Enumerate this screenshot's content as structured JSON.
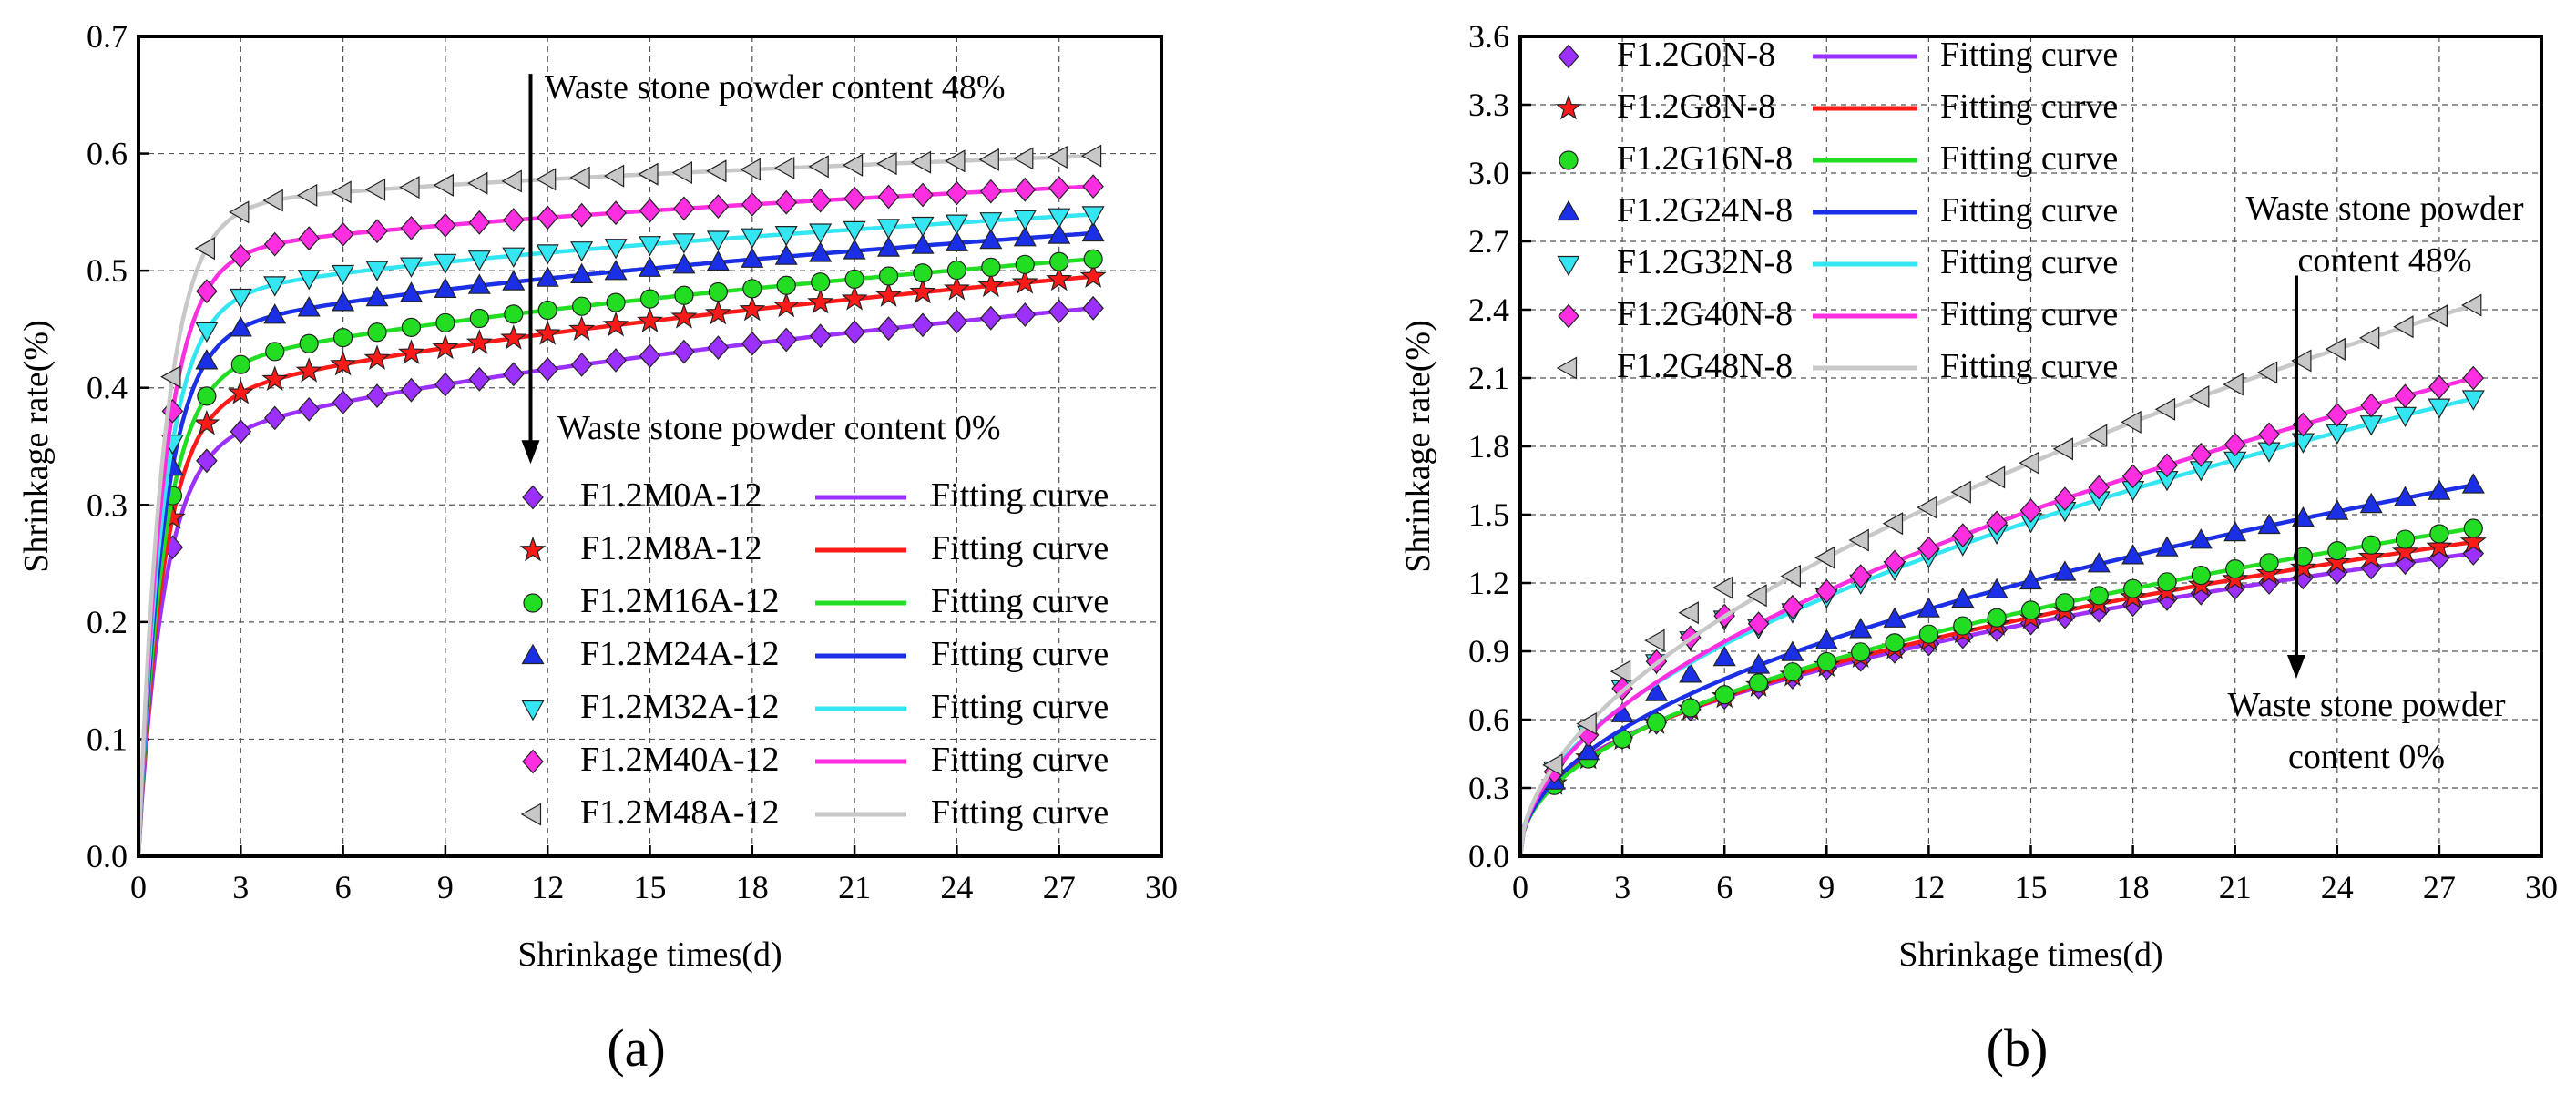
{
  "chart_data": [
    {
      "type": "scatter",
      "panel_label": "(a)",
      "panel_letter": "a",
      "xlabel": "Shrinkage times(d)",
      "ylabel": "Shrinkage rate(%)",
      "xlim": [
        0,
        30
      ],
      "ylim": [
        0,
        0.7
      ],
      "xticks": [
        "0",
        "3",
        "6",
        "9",
        "12",
        "15",
        "18",
        "21",
        "24",
        "27",
        "30"
      ],
      "yticks": [
        "0.0",
        "0.1",
        "0.2",
        "0.3",
        "0.4",
        "0.5",
        "0.6",
        "0.7"
      ],
      "grid": true,
      "legend_position": "bottom-right",
      "fit_label": "Fitting curve",
      "annotations": [
        {
          "text": "Waste stone powder content 48%",
          "kind": "top"
        },
        {
          "text": "Waste stone powder content 0%",
          "kind": "bottom"
        }
      ],
      "arrow": {
        "x": 11.5,
        "y_from": 0.668,
        "y_to": 0.335
      },
      "series": [
        {
          "name": "F1.2M0A-12",
          "marker": "diamond",
          "color": "#9b30ff",
          "final": 0.468
        },
        {
          "name": "F1.2M8A-12",
          "marker": "star",
          "color": "#ff1a1a",
          "final": 0.495
        },
        {
          "name": "F1.2M16A-12",
          "marker": "circle",
          "color": "#22dd22",
          "final": 0.51
        },
        {
          "name": "F1.2M24A-12",
          "marker": "triangle-up",
          "color": "#1a2fe6",
          "final": 0.532
        },
        {
          "name": "F1.2M32A-12",
          "marker": "triangle-down",
          "color": "#33e6f2",
          "final": 0.548
        },
        {
          "name": "F1.2M40A-12",
          "marker": "diamond",
          "color": "#ff2ee0",
          "final": 0.572
        },
        {
          "name": "F1.2M48A-12",
          "marker": "triangle-left",
          "color": "#c8c8c8",
          "final": 0.598
        }
      ]
    },
    {
      "type": "scatter",
      "panel_label": "(b)",
      "panel_letter": "b",
      "xlabel": "Shrinkage times(d)",
      "ylabel": "Shrinkage rate(%)",
      "xlim": [
        0,
        30
      ],
      "ylim": [
        0,
        3.6
      ],
      "xticks": [
        "0",
        "3",
        "6",
        "9",
        "12",
        "15",
        "18",
        "21",
        "24",
        "27",
        "30"
      ],
      "yticks": [
        "0.0",
        "0.3",
        "0.6",
        "0.9",
        "1.2",
        "1.5",
        "1.8",
        "2.1",
        "2.4",
        "2.7",
        "3.0",
        "3.3",
        "3.6"
      ],
      "grid": true,
      "legend_position": "top-left",
      "fit_label": "Fitting curve",
      "annotations": [
        {
          "text": "Waste stone powder",
          "kind": "top-1"
        },
        {
          "text": "content 48%",
          "kind": "top-2"
        },
        {
          "text": "Waste stone powder",
          "kind": "bottom-1"
        },
        {
          "text": "content 0%",
          "kind": "bottom-2"
        }
      ],
      "arrow": {
        "x": 22.8,
        "y_from": 2.55,
        "y_to": 0.78
      },
      "series": [
        {
          "name": "F1.2G0N-8",
          "marker": "diamond",
          "color": "#9b30ff",
          "final": 1.33
        },
        {
          "name": "F1.2G8N-8",
          "marker": "star",
          "color": "#ff1a1a",
          "final": 1.38
        },
        {
          "name": "F1.2G16N-8",
          "marker": "circle",
          "color": "#22dd22",
          "final": 1.44
        },
        {
          "name": "F1.2G24N-8",
          "marker": "triangle-up",
          "color": "#1a2fe6",
          "final": 1.63
        },
        {
          "name": "F1.2G32N-8",
          "marker": "triangle-down",
          "color": "#33e6f2",
          "final": 2.01
        },
        {
          "name": "F1.2G40N-8",
          "marker": "diamond",
          "color": "#ff2ee0",
          "final": 2.1
        },
        {
          "name": "F1.2G48N-8",
          "marker": "triangle-left",
          "color": "#c8c8c8",
          "final": 2.42
        }
      ]
    }
  ]
}
